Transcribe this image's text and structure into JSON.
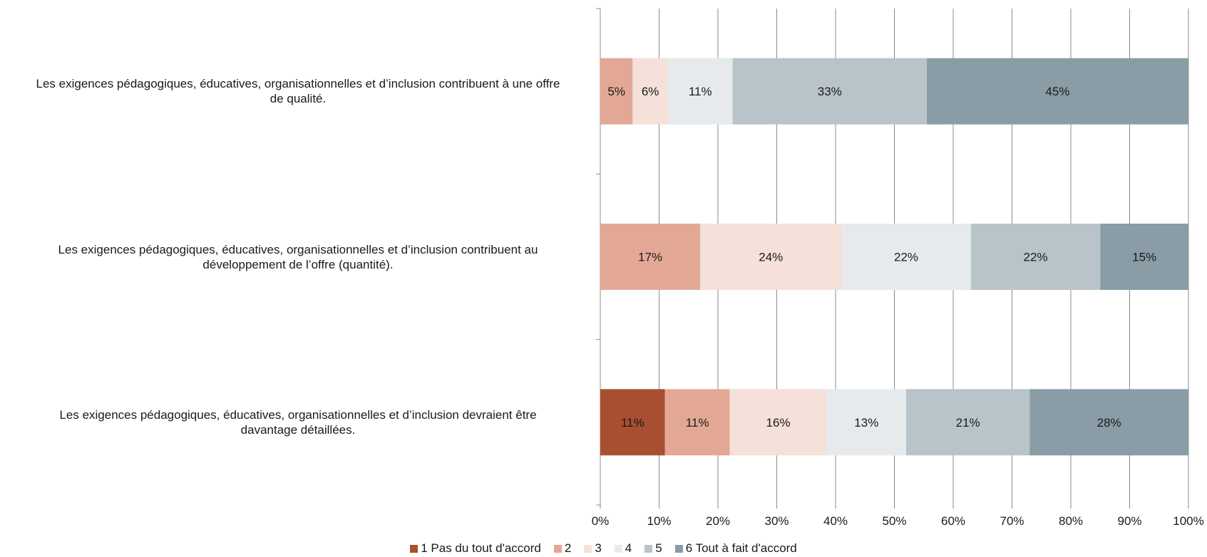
{
  "chart_data": {
    "type": "bar",
    "orientation": "horizontal",
    "stacked": true,
    "categories": [
      "Les exigences pédagogiques, éducatives, organisationnelles et d’inclusion contribuent à une offre de qualité.",
      "Les exigences pédagogiques, éducatives, organisationnelles et d’inclusion contribuent au développement de l’offre (quantité).",
      "Les exigences pédagogiques, éducatives, organisationnelles et d’inclusion devraient être davantage détaillées."
    ],
    "category_lines": [
      [
        "Les exigences pédagogiques, éducatives, organisationnelles et d’inclusion contribuent à une offre",
        "de qualité."
      ],
      [
        "Les exigences pédagogiques, éducatives, organisationnelles et d’inclusion contribuent au",
        "développement de l’offre (quantité)."
      ],
      [
        "Les exigences pédagogiques, éducatives, organisationnelles et d’inclusion devraient être",
        "davantage détaillées."
      ]
    ],
    "series": [
      {
        "name": "1 Pas du tout d'accord",
        "color": "#a84e31",
        "values": [
          0,
          0,
          11
        ],
        "labels": [
          "",
          "",
          "11%"
        ]
      },
      {
        "name": "2",
        "color": "#e3a895",
        "values": [
          5.5,
          17,
          11
        ],
        "labels": [
          "5%",
          "17%",
          "11%"
        ]
      },
      {
        "name": "3",
        "color": "#f5e0da",
        "values": [
          6,
          24,
          16.5
        ],
        "labels": [
          "6%",
          "24%",
          "16%"
        ]
      },
      {
        "name": "4",
        "color": "#e6eaec",
        "values": [
          11,
          22,
          13.5
        ],
        "labels": [
          "11%",
          "22%",
          "13%"
        ]
      },
      {
        "name": "5",
        "color": "#b8c4c9",
        "values": [
          33,
          22,
          21
        ],
        "labels": [
          "33%",
          "22%",
          "21%"
        ]
      },
      {
        "name": "6 Tout à fait d'accord",
        "color": "#8a9ca5",
        "values": [
          45,
          15,
          27.5
        ],
        "labels": [
          "45%",
          "15%",
          "28%"
        ]
      }
    ],
    "xlim": [
      0,
      100
    ],
    "x_ticks": [
      "0%",
      "10%",
      "20%",
      "30%",
      "40%",
      "50%",
      "60%",
      "70%",
      "80%",
      "90%",
      "100%"
    ],
    "grid": true,
    "legend_position": "bottom"
  }
}
